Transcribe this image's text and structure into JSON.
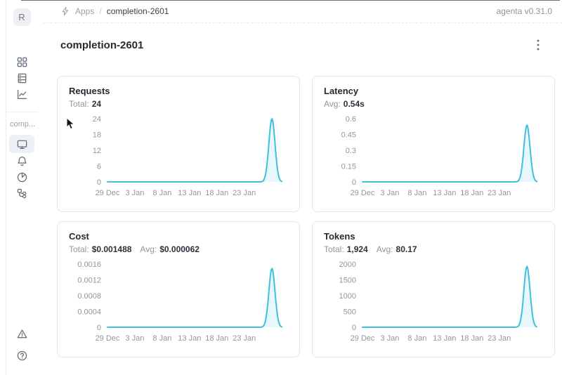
{
  "app": {
    "version_label": "agenta v0.31.0"
  },
  "sidebar": {
    "avatar_letter": "R",
    "workspace_label": "comp...",
    "nav_primary": [
      {
        "id": "apps",
        "icon": "grid-icon"
      },
      {
        "id": "registry",
        "icon": "rack-icon"
      },
      {
        "id": "evaluations",
        "icon": "line-chart-icon"
      }
    ],
    "nav_app": [
      {
        "id": "overview",
        "icon": "monitor-icon",
        "selected": true
      },
      {
        "id": "alerts",
        "icon": "bell-icon"
      },
      {
        "id": "observability",
        "icon": "pie-chart-icon"
      },
      {
        "id": "traces",
        "icon": "tree-icon"
      }
    ],
    "nav_bottom": [
      {
        "id": "alerts-status",
        "icon": "warning-triangle-icon"
      },
      {
        "id": "help",
        "icon": "question-circle-icon"
      }
    ]
  },
  "breadcrumb": {
    "icon": "bolt-icon",
    "root": "Apps",
    "separator": "/",
    "current": "completion-2601"
  },
  "page": {
    "title": "completion-2601"
  },
  "colors": {
    "line": "#3fc0dc",
    "fill": "rgba(63,192,220,0.12)"
  },
  "chart_data": [
    {
      "type": "line",
      "key": "requests",
      "title": "Requests",
      "stats": [
        {
          "label": "Total:",
          "value": "24"
        }
      ],
      "y_ticks": [
        "0",
        "6",
        "12",
        "18",
        "24"
      ],
      "ylim": [
        0,
        24
      ],
      "x_labels": [
        "29 Dec",
        "3 Jan",
        "8 Jan",
        "13 Jan",
        "18 Jan",
        "23 Jan"
      ],
      "x_label_step_frac": 0.157,
      "baseline_value": 0,
      "peak_value": 24,
      "peak_x_frac": 0.944,
      "grid": false,
      "legend": false
    },
    {
      "type": "line",
      "key": "latency",
      "title": "Latency",
      "stats": [
        {
          "label": "Avg:",
          "value": "0.54s"
        }
      ],
      "y_ticks": [
        "0",
        "0.15",
        "0.3",
        "0.45",
        "0.6"
      ],
      "ylim": [
        0,
        0.6
      ],
      "x_labels": [
        "29 Dec",
        "3 Jan",
        "8 Jan",
        "13 Jan",
        "18 Jan",
        "23 Jan"
      ],
      "x_label_step_frac": 0.157,
      "baseline_value": 0,
      "peak_value": 0.54,
      "peak_x_frac": 0.944,
      "grid": false,
      "legend": false
    },
    {
      "type": "line",
      "key": "cost",
      "title": "Cost",
      "stats": [
        {
          "label": "Total:",
          "value": "$0.001488"
        },
        {
          "label": "Avg:",
          "value": "$0.000062"
        }
      ],
      "y_ticks": [
        "0",
        "0.0004",
        "0.0008",
        "0.0012",
        "0.0016"
      ],
      "ylim": [
        0,
        0.0016
      ],
      "x_labels": [
        "29 Dec",
        "3 Jan",
        "8 Jan",
        "13 Jan",
        "18 Jan",
        "23 Jan"
      ],
      "x_label_step_frac": 0.157,
      "baseline_value": 0,
      "peak_value": 0.001488,
      "peak_x_frac": 0.944,
      "grid": false,
      "legend": false
    },
    {
      "type": "line",
      "key": "tokens",
      "title": "Tokens",
      "stats": [
        {
          "label": "Total:",
          "value": "1,924"
        },
        {
          "label": "Avg:",
          "value": "80.17"
        }
      ],
      "y_ticks": [
        "0",
        "500",
        "1000",
        "1500",
        "2000"
      ],
      "ylim": [
        0,
        2000
      ],
      "x_labels": [
        "29 Dec",
        "3 Jan",
        "8 Jan",
        "13 Jan",
        "18 Jan",
        "23 Jan"
      ],
      "x_label_step_frac": 0.157,
      "baseline_value": 0,
      "peak_value": 1924,
      "peak_x_frac": 0.944,
      "grid": false,
      "legend": false
    }
  ]
}
